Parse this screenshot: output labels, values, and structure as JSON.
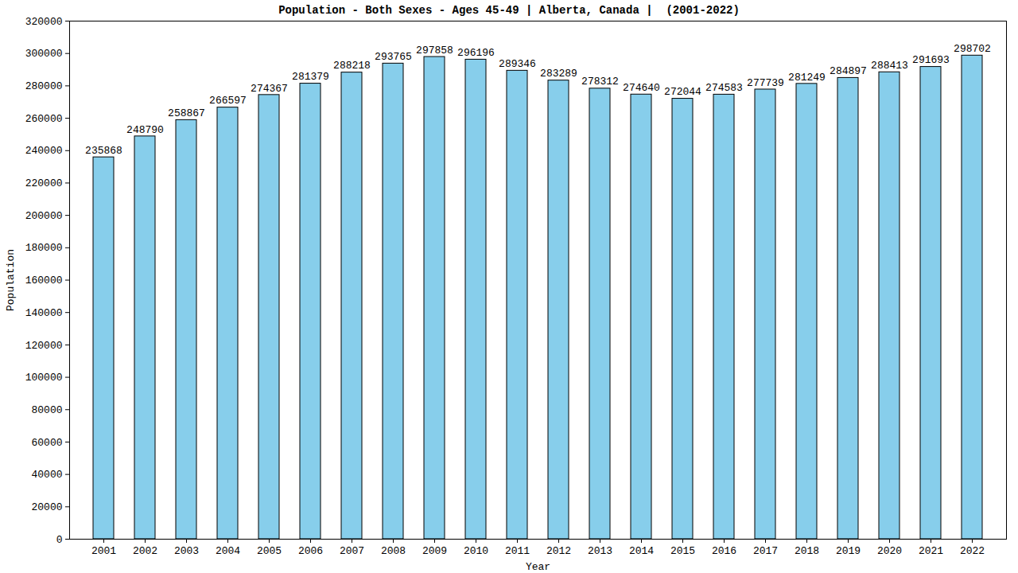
{
  "chart_data": {
    "type": "bar",
    "title": "Population - Both Sexes - Ages 45-49 | Alberta, Canada |  (2001-2022)",
    "x_label": "Year",
    "y_label": "Population",
    "categories": [
      "2001",
      "2002",
      "2003",
      "2004",
      "2005",
      "2006",
      "2007",
      "2008",
      "2009",
      "2010",
      "2011",
      "2012",
      "2013",
      "2014",
      "2015",
      "2016",
      "2017",
      "2018",
      "2019",
      "2020",
      "2021",
      "2022"
    ],
    "values": [
      235868,
      248790,
      258867,
      266597,
      274367,
      281379,
      288218,
      293765,
      297858,
      296196,
      289346,
      283289,
      278312,
      274640,
      272044,
      274583,
      277739,
      281249,
      284897,
      288413,
      291693,
      298702
    ],
    "color": "#87ceeb",
    "ylim": [
      0,
      320000
    ],
    "yticks": [
      0,
      20000,
      40000,
      60000,
      80000,
      100000,
      120000,
      140000,
      160000,
      180000,
      200000,
      220000,
      240000,
      260000,
      280000,
      300000,
      320000
    ],
    "grid": false,
    "data_labels": true
  }
}
